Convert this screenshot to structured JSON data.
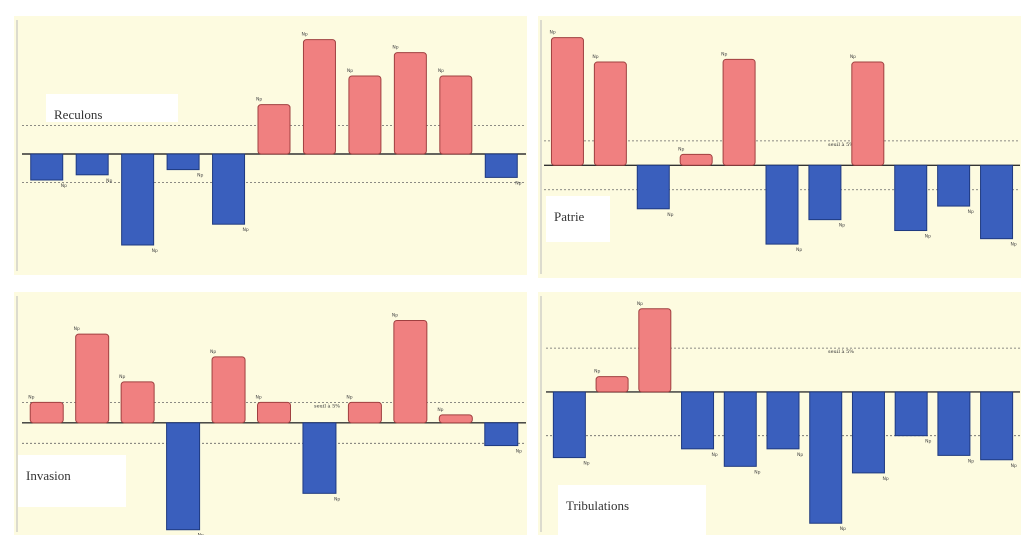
{
  "colors": {
    "positive": "#f08080",
    "negative": "#3a5fbd",
    "background": "#fdfbe0"
  },
  "chart_data": [
    {
      "type": "bar",
      "title": "Reculons",
      "threshold_label": "",
      "labels": [
        "Np",
        "Np",
        "Np",
        "Np",
        "Np",
        "Np",
        "Np",
        "Np",
        "Np",
        "Np",
        "Np"
      ],
      "values": [
        -1.0,
        -0.8,
        -3.5,
        -0.6,
        -2.7,
        1.9,
        4.4,
        3.0,
        3.9,
        3.0,
        -0.9
      ],
      "threshold": 1.1,
      "ylim": [
        -4.5,
        5.0
      ]
    },
    {
      "type": "bar",
      "title": "Patrie",
      "threshold_label": "seuil à 5%",
      "labels": [
        "Np",
        "Np",
        "Np",
        "Np",
        "Np",
        "Np",
        "Np",
        "Np",
        "Np",
        "Np",
        "Np"
      ],
      "values": [
        4.7,
        3.8,
        -1.6,
        0.4,
        3.9,
        -2.9,
        -2.0,
        3.8,
        -2.4,
        -1.5,
        -2.7
      ],
      "threshold": 0.9,
      "ylim": [
        -4.0,
        5.2
      ]
    },
    {
      "type": "bar",
      "title": "Invasion",
      "threshold_label": "seuil à 5%",
      "labels": [
        "Np",
        "Np",
        "Np",
        "Np",
        "Np",
        "Np",
        "Np",
        "Np",
        "Np",
        "Np",
        "Np"
      ],
      "values": [
        0.9,
        3.9,
        1.8,
        -4.7,
        2.9,
        0.9,
        -3.1,
        0.9,
        4.5,
        0.35,
        -1.0
      ],
      "threshold": 0.9,
      "ylim": [
        -4.8,
        5.4
      ]
    },
    {
      "type": "bar",
      "title": "Tribulations",
      "threshold_label": "seuil à 5%",
      "labels": [
        "Np",
        "Np",
        "Np",
        "Np",
        "Np",
        "Np",
        "Np",
        "Np",
        "Np",
        "Np",
        "Np"
      ],
      "values": [
        -1.5,
        0.35,
        1.9,
        -1.3,
        -1.7,
        -1.3,
        -3.0,
        -1.85,
        -1.0,
        -1.45,
        -1.55
      ],
      "threshold": 1.0,
      "ylim": [
        -3.2,
        2.1
      ]
    }
  ]
}
